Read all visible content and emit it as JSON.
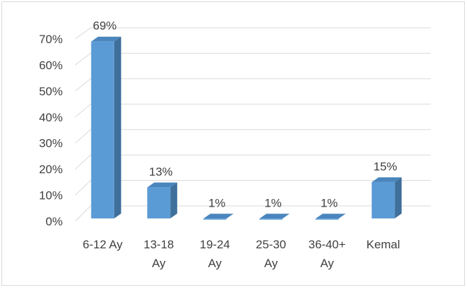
{
  "chart_data": {
    "type": "bar",
    "style": "3d-clustered-column",
    "categories": [
      "6-12 Ay",
      "13-18 Ay",
      "19-24 Ay",
      "25-30 Ay",
      "36-40+ Ay",
      "Kemal"
    ],
    "category_lines": [
      [
        "6-12 Ay"
      ],
      [
        "13-18",
        "Ay"
      ],
      [
        "19-24",
        "Ay"
      ],
      [
        "25-30",
        "Ay"
      ],
      [
        "36-40+",
        "Ay"
      ],
      [
        "Kemal"
      ]
    ],
    "values": [
      0.69,
      0.13,
      0.01,
      0.01,
      0.01,
      0.15
    ],
    "data_labels": [
      "69%",
      "13%",
      "1%",
      "1%",
      "1%",
      "15%"
    ],
    "title": "",
    "xlabel": "",
    "ylabel": "",
    "ylim": [
      0,
      0.7
    ],
    "yticks": [
      0,
      0.1,
      0.2,
      0.3,
      0.4,
      0.5,
      0.6,
      0.7
    ],
    "ytick_labels": [
      "0%",
      "10%",
      "20%",
      "30%",
      "40%",
      "50%",
      "60%",
      "70%"
    ],
    "grid": true,
    "legend": "none",
    "colors": {
      "bar_front": "#5b9bd5",
      "bar_side": "#3f6f9b",
      "bar_top": "#4a86bd",
      "gridline": "#d9d9d9",
      "text": "#404040"
    }
  }
}
